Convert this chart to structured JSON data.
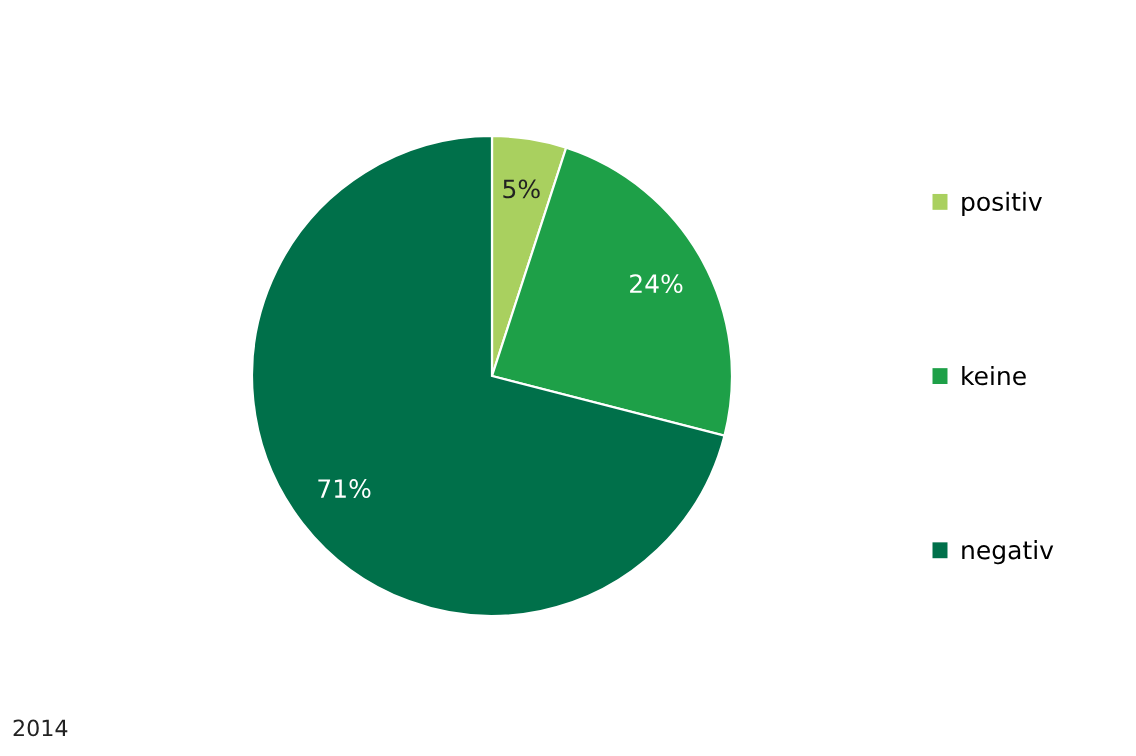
{
  "chart_data": {
    "type": "pie",
    "categories": [
      "positiv",
      "keine",
      "negativ"
    ],
    "values": [
      5,
      24,
      71
    ],
    "colors": [
      "#a9d05f",
      "#1ea048",
      "#00704a"
    ],
    "value_labels": [
      "5%",
      "24%",
      "71%"
    ],
    "legend": "right",
    "annotations": [
      "2014"
    ]
  }
}
